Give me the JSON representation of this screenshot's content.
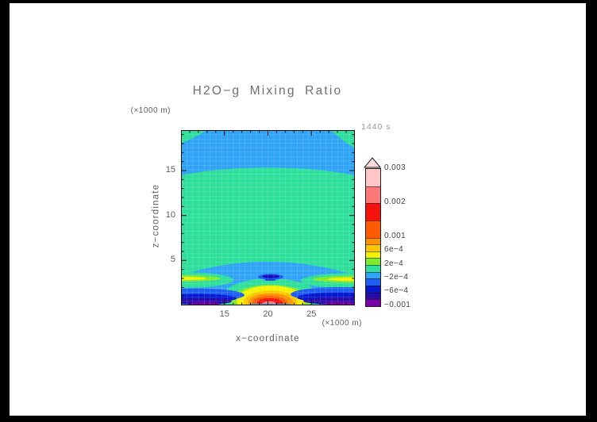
{
  "window": {
    "frame_color": "#000000",
    "canvas_color": "#ffffff"
  },
  "title": "H2O−g Mixing Ratio",
  "time_label": "1440 s",
  "axes": {
    "x": {
      "label": "x−coordinate",
      "units_label": "(×1000 m)",
      "range": [
        10,
        30
      ],
      "major_ticks": [
        15,
        20,
        25
      ],
      "minor_step": 1
    },
    "z": {
      "label": "z−coordinate",
      "units_label": "(×1000 m)",
      "range": [
        0,
        19.5
      ],
      "major_ticks": [
        5,
        10,
        15
      ],
      "minor_step": 1
    }
  },
  "text_colors": {
    "title": "#6f6f6f",
    "label": "#5d5d5d",
    "cbar": "#3f3f3f",
    "time": "#9b9b9b"
  },
  "colorbar": {
    "levels": [
      -0.001,
      -0.0008,
      -0.0006,
      -0.0004,
      -0.0002,
      0,
      0.0002,
      0.0004,
      0.0006,
      0.0008,
      0.001,
      0.0015,
      0.002,
      0.0025,
      0.003
    ],
    "band_colors": [
      "#7a00a8",
      "#2a0ba8",
      "#0618cf",
      "#1e5ff2",
      "#2fa3f5",
      "#2ede9b",
      "#7feb2e",
      "#f2f200",
      "#ffc400",
      "#ff9000",
      "#ff5a00",
      "#f5120c",
      "#ff7878",
      "#ffc6c8"
    ],
    "overflow_arrow_color": "#ffdcdc",
    "tick_labels": [
      {
        "value": 0.003,
        "text": "0.003"
      },
      {
        "value": 0.002,
        "text": "0.002"
      },
      {
        "value": 0.001,
        "text": "0.001"
      },
      {
        "value": 0.0006,
        "text": "6e−4"
      },
      {
        "value": 0.0002,
        "text": "2e−4"
      },
      {
        "value": -0.0002,
        "text": "−2e−4"
      },
      {
        "value": -0.0006,
        "text": "−6e−4"
      },
      {
        "value": -0.001,
        "text": "−0.001"
      }
    ]
  },
  "chart_data": {
    "type": "heatmap",
    "subtype": "filled_contour",
    "title": "H2O−g Mixing Ratio",
    "time_annotation": "1440 s",
    "xlabel": "x−coordinate (×1000 m)",
    "ylabel": "z−coordinate (×1000 m)",
    "xlim": [
      10,
      30
    ],
    "ylim": [
      0,
      19.5
    ],
    "grid": "model mesh overlay, light cells ~0.67 km × 0.5 km",
    "legend_position": "right",
    "contour_levels": [
      -0.001,
      -0.0008,
      -0.0006,
      -0.0004,
      -0.0002,
      0,
      0.0002,
      0.0004,
      0.0006,
      0.0008,
      0.001,
      0.0015,
      0.002,
      0.0025,
      0.003
    ],
    "features": [
      {
        "region": "upper background band",
        "x": [
          10,
          30
        ],
        "z": [
          15.5,
          19.5
        ],
        "value_range": [
          -0.0002,
          0
        ],
        "color": "azure blue"
      },
      {
        "region": "top-left corner patch",
        "x": [
          10,
          12.5
        ],
        "z": [
          18,
          19.5
        ],
        "value_range": [
          0,
          0.0002
        ],
        "color": "green"
      },
      {
        "region": "top-right corner patch",
        "x": [
          27.5,
          30
        ],
        "z": [
          17.5,
          19.5
        ],
        "value_range": [
          0,
          0.0002
        ],
        "color": "green"
      },
      {
        "region": "mid-level dome",
        "x": [
          10,
          30
        ],
        "z": [
          3.5,
          15.5
        ],
        "value_range": [
          0,
          0.0002
        ],
        "color": "green",
        "note": "upper boundary peaks at x=20, z≈15.5; lower boundary sags to z≈4.5 at center"
      },
      {
        "region": "surface plume",
        "center_x": 20,
        "center_z": 0.7,
        "x": [
          16,
          24
        ],
        "z": [
          0,
          3
        ],
        "max_value_range": [
          0.002,
          0.0025
        ],
        "rings": [
          "green",
          "chartreuse",
          "yellow",
          "amber",
          "orange",
          "orange-red",
          "red",
          "salmon core"
        ]
      },
      {
        "region": "negative anomaly above plume",
        "center_x": 20,
        "center_z": 3.2,
        "value_range": [
          -0.0008,
          -0.0004
        ],
        "color": "navy dashes"
      },
      {
        "region": "left edge streak",
        "x": [
          10,
          16
        ],
        "z": [
          2.8,
          3.4
        ],
        "value_range": [
          0.0002,
          0.0006
        ],
        "color": "chartreuse-yellow"
      },
      {
        "region": "right edge streak",
        "x": [
          25,
          30
        ],
        "z": [
          2.8,
          3.4
        ],
        "value_range": [
          0.0002,
          0.0006
        ],
        "color": "chartreuse-yellow"
      },
      {
        "region": "bottom-left negative band",
        "x": [
          10.5,
          17
        ],
        "z": [
          0,
          1.2
        ],
        "value_range": [
          -0.001,
          -0.0004
        ],
        "colors": [
          "royal blue",
          "dark blue",
          "navy",
          "purple"
        ]
      },
      {
        "region": "bottom-right negative band",
        "x": [
          24,
          30
        ],
        "z": [
          0,
          1.2
        ],
        "value_range": [
          -0.001,
          -0.0004
        ],
        "colors": [
          "royal blue",
          "dark blue",
          "navy",
          "purple"
        ]
      }
    ]
  }
}
